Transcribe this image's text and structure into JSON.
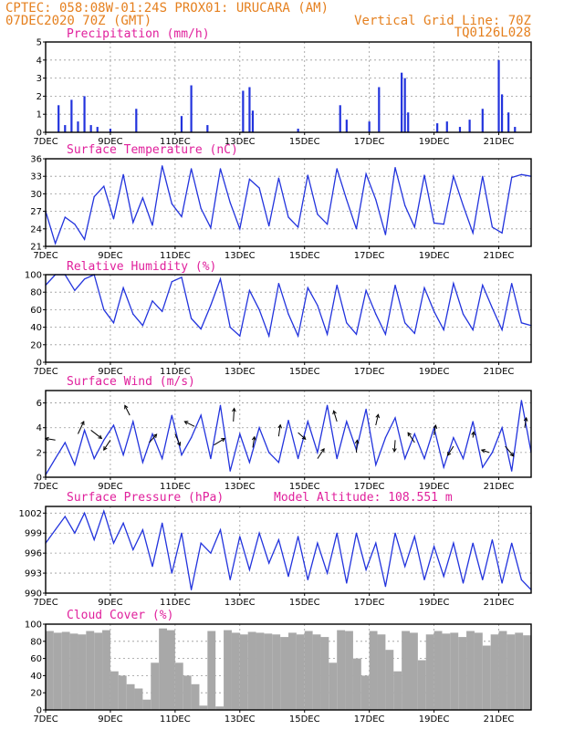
{
  "header": {
    "line1_left": "CPTEC:   058:08W-01:24S   PROX01: URUCARA (AM)",
    "line2_left": "07DEC2020 70Z (GMT)",
    "line2_right": "Vertical Grid Line: 70Z",
    "line3_right": "TQ0126L028"
  },
  "colors": {
    "header": "#e5801f",
    "panel_title": "#e0209c",
    "series": "#2233dd",
    "cloud": "#a8a8a8"
  },
  "x_axis": {
    "range": [
      7,
      22
    ],
    "ticks": [
      7,
      9,
      11,
      13,
      15,
      17,
      19,
      21
    ],
    "tick_labels": [
      "7DEC",
      "9DEC",
      "11DEC",
      "13DEC",
      "15DEC",
      "17DEC",
      "19DEC",
      "21DEC"
    ]
  },
  "chart_data": [
    {
      "type": "bar",
      "title": "Precipitation (mm/h)",
      "ylim": [
        0,
        5
      ],
      "yticks": [
        0,
        1,
        2,
        3,
        4,
        5
      ],
      "x": [
        7.4,
        7.6,
        7.8,
        8.0,
        8.2,
        8.4,
        8.6,
        9.0,
        9.8,
        11.2,
        11.5,
        12.0,
        13.1,
        13.3,
        13.4,
        14.8,
        16.1,
        16.3,
        17.0,
        17.3,
        18.0,
        18.1,
        18.2,
        19.1,
        19.4,
        19.8,
        20.1,
        20.5,
        21.0,
        21.1,
        21.3,
        21.5
      ],
      "values": [
        1.5,
        0.4,
        1.8,
        0.6,
        2.0,
        0.4,
        0.3,
        0.2,
        1.3,
        0.9,
        2.6,
        0.4,
        2.3,
        2.5,
        1.2,
        0.2,
        1.5,
        0.7,
        0.6,
        2.5,
        3.3,
        3.0,
        1.1,
        0.5,
        0.6,
        0.3,
        0.7,
        1.3,
        4.0,
        2.1,
        1.1,
        0.3
      ]
    },
    {
      "type": "line",
      "title": "Surface Temperature (nC)",
      "ylim": [
        21,
        36
      ],
      "yticks": [
        21,
        24,
        27,
        30,
        33,
        36
      ],
      "x": [
        7.0,
        7.3,
        7.6,
        7.9,
        8.2,
        8.5,
        8.8,
        9.1,
        9.4,
        9.7,
        10.0,
        10.3,
        10.6,
        10.9,
        11.2,
        11.5,
        11.8,
        12.1,
        12.4,
        12.7,
        13.0,
        13.3,
        13.6,
        13.9,
        14.2,
        14.5,
        14.8,
        15.1,
        15.4,
        15.7,
        16.0,
        16.3,
        16.6,
        16.9,
        17.2,
        17.5,
        17.8,
        18.1,
        18.4,
        18.7,
        19.0,
        19.3,
        19.6,
        19.9,
        20.2,
        20.5,
        20.8,
        21.1,
        21.4,
        21.7,
        22.0
      ],
      "values": [
        27,
        21.5,
        26,
        24.8,
        22.2,
        29.5,
        31.3,
        25.7,
        33.3,
        25.1,
        29.3,
        24.6,
        34.8,
        28.3,
        26.1,
        34.3,
        27.5,
        24.2,
        34.3,
        28.5,
        24.0,
        32.5,
        31.0,
        24.5,
        32.7,
        26.0,
        24.3,
        33.2,
        26.5,
        24.8,
        34.3,
        29.0,
        24.0,
        33.4,
        29.0,
        23.0,
        34.5,
        28.0,
        24.3,
        33.2,
        25.0,
        24.8,
        33.0,
        28.0,
        23.3,
        33.0,
        24.3,
        23.3,
        32.8,
        33.3,
        33.0
      ]
    },
    {
      "type": "line",
      "title": "Relative Humidity (%)",
      "ylim": [
        0,
        100
      ],
      "yticks": [
        0,
        20,
        40,
        60,
        80,
        100
      ],
      "x": [
        7.0,
        7.3,
        7.6,
        7.9,
        8.2,
        8.5,
        8.8,
        9.1,
        9.4,
        9.7,
        10.0,
        10.3,
        10.6,
        10.9,
        11.2,
        11.5,
        11.8,
        12.1,
        12.4,
        12.7,
        13.0,
        13.3,
        13.6,
        13.9,
        14.2,
        14.5,
        14.8,
        15.1,
        15.4,
        15.7,
        16.0,
        16.3,
        16.6,
        16.9,
        17.2,
        17.5,
        17.8,
        18.1,
        18.4,
        18.7,
        19.0,
        19.3,
        19.6,
        19.9,
        20.2,
        20.5,
        20.8,
        21.1,
        21.4,
        21.7,
        22.0
      ],
      "values": [
        88,
        100,
        100,
        82,
        95,
        100,
        60,
        45,
        85,
        55,
        42,
        70,
        58,
        92,
        97,
        50,
        38,
        65,
        95,
        40,
        30,
        82,
        60,
        30,
        90,
        55,
        30,
        85,
        65,
        32,
        88,
        45,
        32,
        82,
        55,
        32,
        88,
        45,
        33,
        85,
        58,
        37,
        90,
        55,
        37,
        88,
        62,
        37,
        90,
        45,
        42
      ]
    },
    {
      "type": "line",
      "title": "Surface Wind (m/s)",
      "ylim": [
        0,
        7
      ],
      "yticks": [
        0,
        2,
        4,
        6
      ],
      "x": [
        7.0,
        7.3,
        7.6,
        7.9,
        8.2,
        8.5,
        8.8,
        9.1,
        9.4,
        9.7,
        10.0,
        10.3,
        10.6,
        10.9,
        11.2,
        11.5,
        11.8,
        12.1,
        12.4,
        12.7,
        13.0,
        13.3,
        13.6,
        13.9,
        14.2,
        14.5,
        14.8,
        15.1,
        15.4,
        15.7,
        16.0,
        16.3,
        16.6,
        16.9,
        17.2,
        17.5,
        17.8,
        18.1,
        18.4,
        18.7,
        19.0,
        19.3,
        19.6,
        19.9,
        20.2,
        20.5,
        20.8,
        21.1,
        21.4,
        21.7,
        22.0
      ],
      "values": [
        0.2,
        1.5,
        2.8,
        1.0,
        3.8,
        1.5,
        3.0,
        4.2,
        1.8,
        4.5,
        1.2,
        3.5,
        1.5,
        5.0,
        1.8,
        3.2,
        5.0,
        1.5,
        5.8,
        0.5,
        3.5,
        1.2,
        4.0,
        2.0,
        1.2,
        4.6,
        1.5,
        4.5,
        2.0,
        5.8,
        1.5,
        4.5,
        2.2,
        5.5,
        1.0,
        3.2,
        4.8,
        1.5,
        3.5,
        1.5,
        4.0,
        0.8,
        3.2,
        1.5,
        4.5,
        0.8,
        2.0,
        4.0,
        0.5,
        6.2,
        2.0
      ],
      "arrows": [
        {
          "x": 7.3,
          "y": 3.0,
          "u": -1.2,
          "v": 0.2
        },
        {
          "x": 8.0,
          "y": 3.5,
          "u": 0.7,
          "v": 1.5
        },
        {
          "x": 8.4,
          "y": 3.8,
          "u": 1.3,
          "v": -1.0
        },
        {
          "x": 9.0,
          "y": 3.0,
          "u": -0.8,
          "v": -1.2
        },
        {
          "x": 9.6,
          "y": 5.0,
          "u": -0.6,
          "v": 1.2
        },
        {
          "x": 10.2,
          "y": 2.8,
          "u": 0.9,
          "v": 1.0
        },
        {
          "x": 11.0,
          "y": 3.5,
          "u": 0.6,
          "v": -1.4
        },
        {
          "x": 11.6,
          "y": 4.1,
          "u": -1.2,
          "v": 0.6
        },
        {
          "x": 12.2,
          "y": 2.6,
          "u": 1.3,
          "v": 0.8
        },
        {
          "x": 12.8,
          "y": 4.5,
          "u": 0.1,
          "v": 1.6
        },
        {
          "x": 13.4,
          "y": 2.4,
          "u": 0.2,
          "v": 1.3
        },
        {
          "x": 14.2,
          "y": 3.3,
          "u": 0.2,
          "v": 1.4
        },
        {
          "x": 14.8,
          "y": 3.6,
          "u": 0.9,
          "v": -0.8
        },
        {
          "x": 15.4,
          "y": 1.5,
          "u": 0.8,
          "v": 1.2
        },
        {
          "x": 16.0,
          "y": 4.5,
          "u": -0.4,
          "v": 1.3
        },
        {
          "x": 16.6,
          "y": 2.0,
          "u": 0.1,
          "v": 1.5
        },
        {
          "x": 17.2,
          "y": 4.2,
          "u": 0.3,
          "v": 1.3
        },
        {
          "x": 17.8,
          "y": 3.0,
          "u": -0.1,
          "v": -1.4
        },
        {
          "x": 18.4,
          "y": 2.8,
          "u": -0.8,
          "v": 1.2
        },
        {
          "x": 19.0,
          "y": 3.4,
          "u": 0.2,
          "v": 1.2
        },
        {
          "x": 19.6,
          "y": 2.5,
          "u": -0.7,
          "v": -1.1
        },
        {
          "x": 20.2,
          "y": 3.2,
          "u": 0.1,
          "v": 0.7
        },
        {
          "x": 20.7,
          "y": 2.0,
          "u": -0.9,
          "v": 0.3
        },
        {
          "x": 21.2,
          "y": 2.5,
          "u": 1.0,
          "v": -1.2
        },
        {
          "x": 21.8,
          "y": 4.0,
          "u": 0.2,
          "v": 1.2
        }
      ]
    },
    {
      "type": "line",
      "title": "Surface Pressure (hPa)",
      "subtitle": "Model Altitude: 108.551  m",
      "ylim": [
        990,
        1003
      ],
      "yticks": [
        990,
        993,
        996,
        999,
        1002
      ],
      "x": [
        7.0,
        7.3,
        7.6,
        7.9,
        8.2,
        8.5,
        8.8,
        9.1,
        9.4,
        9.7,
        10.0,
        10.3,
        10.6,
        10.9,
        11.2,
        11.5,
        11.8,
        12.1,
        12.4,
        12.7,
        13.0,
        13.3,
        13.6,
        13.9,
        14.2,
        14.5,
        14.8,
        15.1,
        15.4,
        15.7,
        16.0,
        16.3,
        16.6,
        16.9,
        17.2,
        17.5,
        17.8,
        18.1,
        18.4,
        18.7,
        19.0,
        19.3,
        19.6,
        19.9,
        20.2,
        20.5,
        20.8,
        21.1,
        21.4,
        21.7,
        22.0
      ],
      "values": [
        997.5,
        999.5,
        1001.5,
        999,
        1002,
        998,
        1002.3,
        997.5,
        1000.5,
        996.5,
        999.5,
        994,
        1000.5,
        993,
        999,
        990.5,
        997.5,
        996,
        999.5,
        992,
        998.5,
        993.5,
        999,
        994.5,
        998,
        992.5,
        998.5,
        992,
        997.5,
        993,
        999,
        991.5,
        999,
        993.5,
        997.5,
        991,
        999,
        994,
        998.5,
        992,
        997,
        992.5,
        997.5,
        991.5,
        997.5,
        992,
        998,
        991.5,
        997.5,
        992,
        990.5
      ]
    },
    {
      "type": "area",
      "title": "Cloud Cover (%)",
      "ylim": [
        0,
        100
      ],
      "yticks": [
        0,
        20,
        40,
        60,
        80,
        100
      ],
      "x": [
        7.0,
        7.25,
        7.5,
        7.75,
        8.0,
        8.25,
        8.5,
        8.75,
        9.0,
        9.25,
        9.5,
        9.75,
        10.0,
        10.25,
        10.5,
        10.75,
        11.0,
        11.25,
        11.5,
        11.75,
        12.0,
        12.25,
        12.5,
        12.75,
        13.0,
        13.25,
        13.5,
        13.75,
        14.0,
        14.25,
        14.5,
        14.75,
        15.0,
        15.25,
        15.5,
        15.75,
        16.0,
        16.25,
        16.5,
        16.75,
        17.0,
        17.25,
        17.5,
        17.75,
        18.0,
        18.25,
        18.5,
        18.75,
        19.0,
        19.25,
        19.5,
        19.75,
        20.0,
        20.25,
        20.5,
        20.75,
        21.0,
        21.25,
        21.5,
        21.75,
        22.0
      ],
      "values": [
        92,
        90,
        91,
        89,
        88,
        92,
        90,
        93,
        45,
        40,
        30,
        25,
        12,
        55,
        95,
        93,
        55,
        40,
        30,
        5,
        92,
        4,
        93,
        90,
        88,
        91,
        90,
        89,
        88,
        85,
        90,
        88,
        92,
        88,
        85,
        55,
        93,
        92,
        60,
        40,
        92,
        88,
        70,
        45,
        92,
        90,
        58,
        88,
        92,
        89,
        90,
        85,
        92,
        90,
        75,
        88,
        92,
        88,
        90,
        87,
        90
      ]
    }
  ]
}
